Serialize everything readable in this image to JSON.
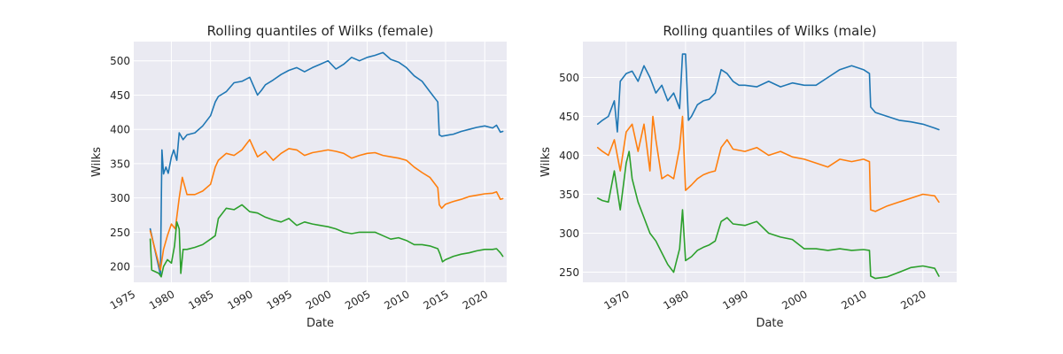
{
  "chart_data": [
    {
      "type": "line",
      "title": "Rolling quantiles of Wilks (female)",
      "xlabel": "Date",
      "ylabel": "Wilks",
      "xlim": [
        1975.2,
        2022.8
      ],
      "ylim": [
        177,
        528
      ],
      "xticks": [
        1975,
        1980,
        1985,
        1990,
        1995,
        2000,
        2005,
        2010,
        2015,
        2020
      ],
      "xtick_labels": [
        "1975",
        "1980",
        "1985",
        "1990",
        "1995",
        "2000",
        "2005",
        "2010",
        "2015",
        "2020"
      ],
      "yticks": [
        200,
        250,
        300,
        350,
        400,
        450,
        500
      ],
      "ytick_labels": [
        "200",
        "250",
        "300",
        "350",
        "400",
        "450",
        "500"
      ],
      "grid": true,
      "series": [
        {
          "color": "#1f77b4",
          "x": [
            1977.3,
            1978.6,
            1978.8,
            1979.0,
            1979.3,
            1979.6,
            1980.0,
            1980.3,
            1980.7,
            1981.0,
            1981.5,
            1982,
            1983,
            1984,
            1985,
            1985.6,
            1986,
            1987,
            1988,
            1989,
            1990,
            1991,
            1991.5,
            1992,
            1993,
            1994,
            1995,
            1996,
            1997,
            1998,
            1999,
            2000,
            2001,
            2002,
            2003,
            2004,
            2005,
            2006,
            2007,
            2008,
            2009,
            2010,
            2011,
            2012,
            2013,
            2014,
            2014.2,
            2014.5,
            2015,
            2016,
            2017,
            2018,
            2019,
            2020,
            2021,
            2021.5,
            2022.0,
            2022.3
          ],
          "y": [
            255,
            188,
            370,
            335,
            345,
            336,
            360,
            370,
            355,
            395,
            385,
            392,
            395,
            405,
            420,
            440,
            448,
            455,
            468,
            470,
            476,
            450,
            457,
            465,
            472,
            480,
            486,
            490,
            484,
            490,
            495,
            500,
            488,
            495,
            505,
            500,
            505,
            508,
            512,
            502,
            498,
            490,
            478,
            470,
            455,
            440,
            392,
            390,
            391,
            393,
            397,
            400,
            403,
            405,
            402,
            406,
            396,
            397
          ]
        },
        {
          "color": "#ff7f0e",
          "x": [
            1977.3,
            1978.6,
            1979.0,
            1979.5,
            1980.0,
            1980.5,
            1981.0,
            1981.4,
            1982,
            1983,
            1984,
            1985,
            1985.6,
            1986,
            1987,
            1988,
            1989,
            1990,
            1991,
            1992,
            1993,
            1994,
            1995,
            1996,
            1997,
            1998,
            1999,
            2000,
            2001,
            2002,
            2003,
            2004,
            2005,
            2006,
            2007,
            2008,
            2009,
            2010,
            2011,
            2012,
            2013,
            2014,
            2014.2,
            2014.5,
            2015,
            2016,
            2017,
            2018,
            2019,
            2020,
            2021,
            2021.5,
            2022.0,
            2022.3
          ],
          "y": [
            252,
            195,
            225,
            245,
            262,
            255,
            300,
            330,
            305,
            305,
            310,
            320,
            345,
            355,
            365,
            362,
            370,
            385,
            360,
            368,
            355,
            365,
            372,
            370,
            362,
            366,
            368,
            370,
            368,
            365,
            358,
            362,
            365,
            366,
            362,
            360,
            358,
            355,
            345,
            337,
            330,
            315,
            290,
            285,
            291,
            295,
            298,
            302,
            304,
            306,
            307,
            309,
            298,
            299
          ]
        },
        {
          "color": "#2ca02c",
          "x": [
            1977.3,
            1977.5,
            1978.4,
            1978.7,
            1979.0,
            1979.5,
            1980.0,
            1980.4,
            1980.7,
            1981.0,
            1981.2,
            1981.5,
            1982,
            1983,
            1984,
            1985,
            1985.6,
            1986,
            1987,
            1988,
            1989,
            1990,
            1991,
            1992,
            1993,
            1994,
            1995,
            1996,
            1997,
            1998,
            1999,
            2000,
            2001,
            2002,
            2003,
            2004,
            2005,
            2006,
            2007,
            2008,
            2009,
            2010,
            2011,
            2012,
            2013,
            2014,
            2014.3,
            2014.6,
            2015,
            2016,
            2017,
            2018,
            2019,
            2020,
            2021,
            2021.5,
            2022.0,
            2022.3
          ],
          "y": [
            240,
            195,
            190,
            185,
            200,
            210,
            205,
            230,
            265,
            255,
            190,
            225,
            225,
            228,
            232,
            240,
            245,
            270,
            285,
            283,
            290,
            280,
            278,
            272,
            268,
            265,
            270,
            260,
            265,
            262,
            260,
            258,
            255,
            250,
            248,
            250,
            250,
            250,
            245,
            240,
            242,
            238,
            232,
            232,
            230,
            226,
            218,
            207,
            210,
            215,
            218,
            220,
            223,
            225,
            225,
            226,
            220,
            215
          ]
        }
      ]
    },
    {
      "type": "line",
      "title": "Rolling quantiles of Wilks (male)",
      "xlabel": "Date",
      "ylabel": "Wilks",
      "xlim": [
        1962.7,
        2025.7
      ],
      "ylim": [
        237,
        546
      ],
      "xticks": [
        1970,
        1980,
        1990,
        2000,
        2010,
        2020
      ],
      "xtick_labels": [
        "1970",
        "1980",
        "1990",
        "2000",
        "2010",
        "2020"
      ],
      "yticks": [
        250,
        300,
        350,
        400,
        450,
        500
      ],
      "ytick_labels": [
        "250",
        "300",
        "350",
        "400",
        "450",
        "500"
      ],
      "grid": true,
      "series": [
        {
          "color": "#1f77b4",
          "x": [
            1965.2,
            1966,
            1967,
            1968,
            1968.5,
            1969,
            1970,
            1971,
            1972,
            1973,
            1974,
            1975,
            1976,
            1977,
            1978,
            1979,
            1979.5,
            1980,
            1980.5,
            1981,
            1982,
            1983,
            1984,
            1985,
            1986,
            1987,
            1988,
            1989,
            1990,
            1992,
            1994,
            1996,
            1998,
            2000,
            2002,
            2004,
            2006,
            2008,
            2010,
            2011,
            2011.2,
            2012,
            2014,
            2016,
            2018,
            2020,
            2022,
            2022.7
          ],
          "y": [
            440,
            445,
            450,
            470,
            430,
            495,
            505,
            508,
            495,
            515,
            500,
            480,
            490,
            470,
            480,
            460,
            530,
            530,
            445,
            450,
            465,
            470,
            472,
            480,
            510,
            505,
            495,
            490,
            490,
            488,
            495,
            488,
            493,
            490,
            490,
            500,
            510,
            515,
            510,
            505,
            462,
            455,
            450,
            445,
            443,
            440,
            435,
            433
          ]
        },
        {
          "color": "#ff7f0e",
          "x": [
            1965.2,
            1966,
            1967,
            1968,
            1969,
            1970,
            1971,
            1972,
            1973,
            1974,
            1974.5,
            1975,
            1976,
            1977,
            1978,
            1979,
            1979.5,
            1980,
            1981,
            1982,
            1983,
            1984,
            1985,
            1986,
            1987,
            1988,
            1990,
            1992,
            1994,
            1996,
            1998,
            2000,
            2002,
            2004,
            2006,
            2008,
            2010,
            2011,
            2011.2,
            2012,
            2014,
            2016,
            2018,
            2020,
            2022,
            2022.7
          ],
          "y": [
            410,
            405,
            400,
            420,
            380,
            430,
            440,
            405,
            440,
            380,
            450,
            420,
            370,
            375,
            370,
            410,
            450,
            355,
            362,
            370,
            375,
            378,
            380,
            410,
            420,
            408,
            405,
            410,
            400,
            405,
            398,
            395,
            390,
            385,
            395,
            392,
            395,
            392,
            330,
            328,
            335,
            340,
            345,
            350,
            348,
            340
          ]
        },
        {
          "color": "#2ca02c",
          "x": [
            1965.2,
            1966,
            1967,
            1968,
            1969,
            1970,
            1970.5,
            1971,
            1972,
            1973,
            1974,
            1975,
            1976,
            1977,
            1978,
            1979,
            1979.5,
            1980,
            1981,
            1982,
            1983,
            1984,
            1985,
            1986,
            1987,
            1988,
            1990,
            1992,
            1994,
            1996,
            1998,
            2000,
            2002,
            2004,
            2006,
            2008,
            2010,
            2011,
            2011.2,
            2012,
            2014,
            2016,
            2018,
            2020,
            2022,
            2022.7
          ],
          "y": [
            345,
            342,
            340,
            380,
            330,
            390,
            405,
            370,
            340,
            320,
            300,
            290,
            275,
            260,
            250,
            280,
            330,
            265,
            270,
            278,
            282,
            285,
            290,
            315,
            320,
            312,
            310,
            315,
            300,
            295,
            292,
            280,
            280,
            278,
            280,
            278,
            279,
            278,
            245,
            242,
            244,
            250,
            256,
            258,
            255,
            245
          ]
        }
      ]
    }
  ]
}
